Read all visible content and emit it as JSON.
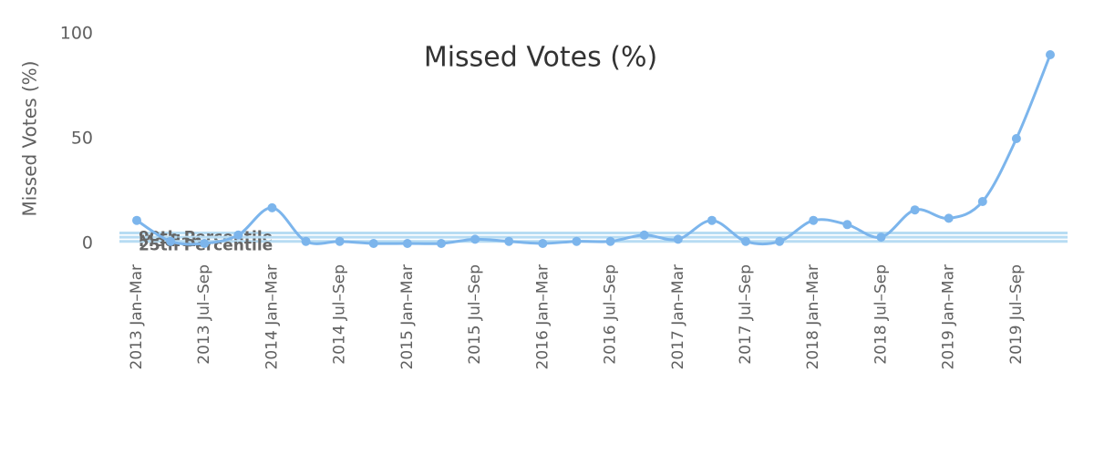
{
  "chart_data": {
    "type": "line",
    "title": "Missed Votes (%)",
    "y_label": "Missed Votes (%)",
    "categories": [
      "2013 Jan–Mar",
      null,
      "2013 Jul–Sep",
      null,
      "2014 Jan–Mar",
      null,
      "2014 Jul–Sep",
      null,
      "2015 Jan–Mar",
      null,
      "2015 Jul–Sep",
      null,
      "2016 Jan–Mar",
      null,
      "2016 Jul–Sep",
      null,
      "2017 Jan–Mar",
      null,
      "2017 Jul–Sep",
      null,
      "2018 Jan–Mar",
      null,
      "2018 Jul–Sep",
      null,
      "2019 Jan–Mar",
      null,
      "2019 Jul–Sep",
      null
    ],
    "series": [
      {
        "name": "Missed Votes (%)",
        "color": "#7cb5ec",
        "values": [
          11,
          1,
          0,
          4,
          17,
          1,
          1,
          0,
          0,
          0,
          2,
          1,
          0,
          1,
          1,
          4,
          2,
          11,
          1,
          1,
          11,
          9,
          3,
          16,
          12,
          20,
          50,
          90
        ]
      }
    ],
    "plot_lines": [
      {
        "label": "90th Percentile",
        "value": 5
      },
      {
        "label": "Median",
        "value": 3
      },
      {
        "label": "25th Percentile",
        "value": 1
      }
    ],
    "ylim": [
      0,
      100
    ],
    "yticks": [
      0,
      50,
      100
    ]
  }
}
